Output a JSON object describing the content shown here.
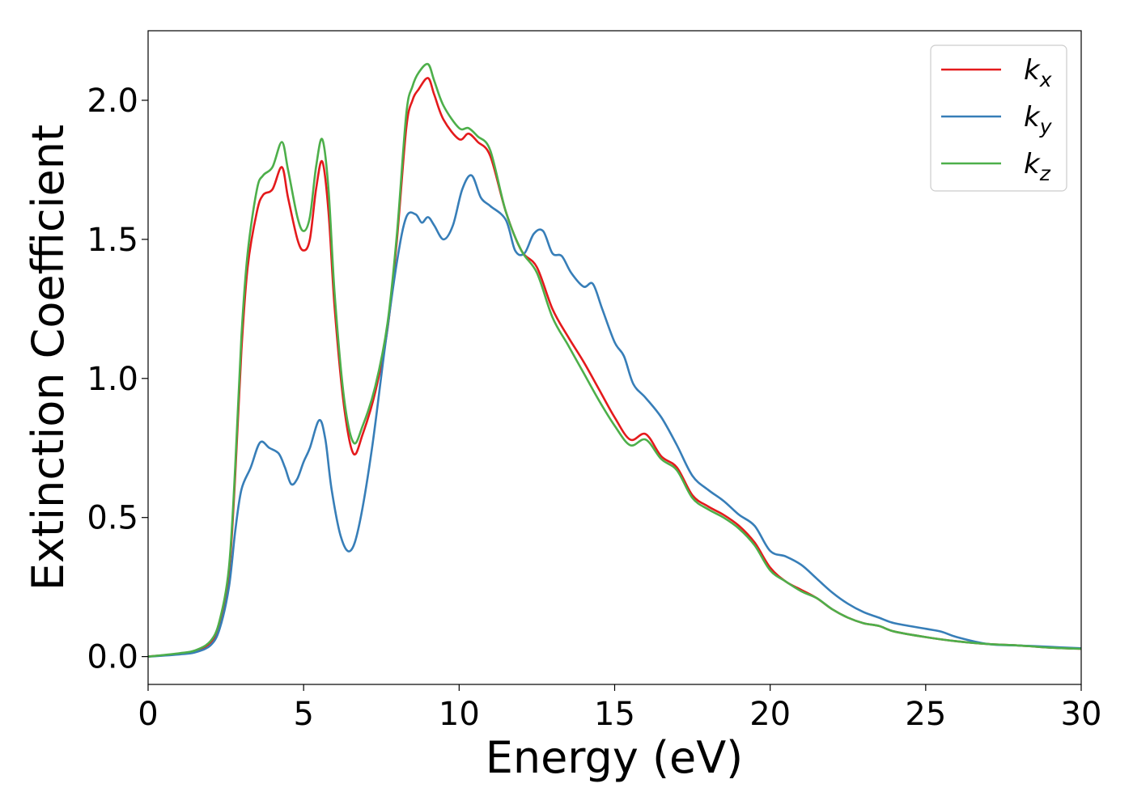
{
  "chart_data": {
    "type": "line",
    "xlabel": "Energy (eV)",
    "ylabel": "Extinction Coefficient",
    "xlim": [
      0,
      30
    ],
    "ylim": [
      -0.1,
      2.25
    ],
    "xticks": [
      0,
      5,
      10,
      15,
      20,
      25,
      30
    ],
    "xtick_labels": [
      "0",
      "5",
      "10",
      "15",
      "20",
      "25",
      "30"
    ],
    "yticks": [
      0.0,
      0.5,
      1.0,
      1.5,
      2.0
    ],
    "ytick_labels": [
      "0.0",
      "0.5",
      "1.0",
      "1.5",
      "2.0"
    ],
    "grid": false,
    "legend_position": "top-right",
    "series": [
      {
        "name": "k_x",
        "legend_main": "k",
        "legend_sub": "x",
        "color": "#e41a1c",
        "points": [
          [
            0,
            0
          ],
          [
            1,
            0.01
          ],
          [
            1.5,
            0.02
          ],
          [
            2,
            0.05
          ],
          [
            2.3,
            0.12
          ],
          [
            2.6,
            0.3
          ],
          [
            2.8,
            0.65
          ],
          [
            3.0,
            1.1
          ],
          [
            3.2,
            1.4
          ],
          [
            3.5,
            1.6
          ],
          [
            3.7,
            1.66
          ],
          [
            4.0,
            1.68
          ],
          [
            4.3,
            1.76
          ],
          [
            4.5,
            1.65
          ],
          [
            4.8,
            1.5
          ],
          [
            5.0,
            1.46
          ],
          [
            5.2,
            1.5
          ],
          [
            5.4,
            1.68
          ],
          [
            5.6,
            1.78
          ],
          [
            5.8,
            1.6
          ],
          [
            6.0,
            1.25
          ],
          [
            6.3,
            0.9
          ],
          [
            6.6,
            0.73
          ],
          [
            6.9,
            0.8
          ],
          [
            7.3,
            0.95
          ],
          [
            7.7,
            1.18
          ],
          [
            8.0,
            1.5
          ],
          [
            8.3,
            1.9
          ],
          [
            8.5,
            2.0
          ],
          [
            8.7,
            2.04
          ],
          [
            9.0,
            2.08
          ],
          [
            9.2,
            2.02
          ],
          [
            9.5,
            1.93
          ],
          [
            10.0,
            1.86
          ],
          [
            10.3,
            1.88
          ],
          [
            10.6,
            1.85
          ],
          [
            11.0,
            1.8
          ],
          [
            11.5,
            1.6
          ],
          [
            12.0,
            1.46
          ],
          [
            12.5,
            1.4
          ],
          [
            13.0,
            1.25
          ],
          [
            13.5,
            1.15
          ],
          [
            14.0,
            1.06
          ],
          [
            14.5,
            0.96
          ],
          [
            15.0,
            0.86
          ],
          [
            15.5,
            0.78
          ],
          [
            16.0,
            0.8
          ],
          [
            16.5,
            0.72
          ],
          [
            17.0,
            0.68
          ],
          [
            17.5,
            0.58
          ],
          [
            18.0,
            0.54
          ],
          [
            18.5,
            0.51
          ],
          [
            19.0,
            0.47
          ],
          [
            19.5,
            0.41
          ],
          [
            20.0,
            0.32
          ],
          [
            20.5,
            0.27
          ],
          [
            21.0,
            0.24
          ],
          [
            21.5,
            0.21
          ],
          [
            22.0,
            0.17
          ],
          [
            22.5,
            0.14
          ],
          [
            23.0,
            0.12
          ],
          [
            23.5,
            0.11
          ],
          [
            24.0,
            0.09
          ],
          [
            25.0,
            0.07
          ],
          [
            26.0,
            0.055
          ],
          [
            27.0,
            0.045
          ],
          [
            28.0,
            0.04
          ],
          [
            29.0,
            0.032
          ],
          [
            30.0,
            0.028
          ]
        ]
      },
      {
        "name": "k_y",
        "legend_main": "k",
        "legend_sub": "y",
        "color": "#377eb8",
        "points": [
          [
            0,
            0
          ],
          [
            1,
            0.008
          ],
          [
            1.5,
            0.015
          ],
          [
            2,
            0.04
          ],
          [
            2.3,
            0.1
          ],
          [
            2.6,
            0.25
          ],
          [
            2.8,
            0.45
          ],
          [
            3.0,
            0.6
          ],
          [
            3.3,
            0.68
          ],
          [
            3.6,
            0.77
          ],
          [
            3.9,
            0.75
          ],
          [
            4.2,
            0.73
          ],
          [
            4.4,
            0.68
          ],
          [
            4.6,
            0.62
          ],
          [
            4.8,
            0.64
          ],
          [
            5.0,
            0.7
          ],
          [
            5.2,
            0.75
          ],
          [
            5.5,
            0.85
          ],
          [
            5.7,
            0.78
          ],
          [
            5.9,
            0.6
          ],
          [
            6.2,
            0.43
          ],
          [
            6.5,
            0.38
          ],
          [
            6.8,
            0.48
          ],
          [
            7.2,
            0.75
          ],
          [
            7.6,
            1.1
          ],
          [
            8.0,
            1.42
          ],
          [
            8.3,
            1.58
          ],
          [
            8.6,
            1.59
          ],
          [
            8.8,
            1.56
          ],
          [
            9.0,
            1.58
          ],
          [
            9.2,
            1.55
          ],
          [
            9.5,
            1.5
          ],
          [
            9.8,
            1.55
          ],
          [
            10.1,
            1.68
          ],
          [
            10.4,
            1.73
          ],
          [
            10.7,
            1.65
          ],
          [
            11.0,
            1.62
          ],
          [
            11.5,
            1.57
          ],
          [
            11.8,
            1.46
          ],
          [
            12.1,
            1.45
          ],
          [
            12.4,
            1.52
          ],
          [
            12.7,
            1.53
          ],
          [
            13.0,
            1.45
          ],
          [
            13.3,
            1.44
          ],
          [
            13.6,
            1.38
          ],
          [
            14.0,
            1.33
          ],
          [
            14.3,
            1.34
          ],
          [
            14.6,
            1.25
          ],
          [
            15.0,
            1.13
          ],
          [
            15.3,
            1.08
          ],
          [
            15.6,
            0.98
          ],
          [
            16.0,
            0.93
          ],
          [
            16.5,
            0.86
          ],
          [
            17.0,
            0.76
          ],
          [
            17.5,
            0.65
          ],
          [
            18.0,
            0.6
          ],
          [
            18.5,
            0.56
          ],
          [
            19.0,
            0.51
          ],
          [
            19.5,
            0.47
          ],
          [
            20.0,
            0.38
          ],
          [
            20.5,
            0.36
          ],
          [
            21.0,
            0.33
          ],
          [
            21.5,
            0.28
          ],
          [
            22.0,
            0.23
          ],
          [
            22.5,
            0.19
          ],
          [
            23.0,
            0.16
          ],
          [
            23.5,
            0.14
          ],
          [
            24.0,
            0.12
          ],
          [
            25.0,
            0.1
          ],
          [
            25.5,
            0.09
          ],
          [
            26.0,
            0.07
          ],
          [
            27.0,
            0.045
          ],
          [
            28.0,
            0.04
          ],
          [
            29.0,
            0.035
          ],
          [
            30.0,
            0.03
          ]
        ]
      },
      {
        "name": "k_z",
        "legend_main": "k",
        "legend_sub": "z",
        "color": "#4daf4a",
        "points": [
          [
            0,
            0
          ],
          [
            1,
            0.012
          ],
          [
            1.5,
            0.022
          ],
          [
            2,
            0.055
          ],
          [
            2.3,
            0.13
          ],
          [
            2.6,
            0.32
          ],
          [
            2.8,
            0.68
          ],
          [
            3.0,
            1.15
          ],
          [
            3.2,
            1.45
          ],
          [
            3.5,
            1.68
          ],
          [
            3.7,
            1.73
          ],
          [
            4.0,
            1.76
          ],
          [
            4.3,
            1.85
          ],
          [
            4.5,
            1.75
          ],
          [
            4.8,
            1.58
          ],
          [
            5.0,
            1.53
          ],
          [
            5.2,
            1.58
          ],
          [
            5.4,
            1.76
          ],
          [
            5.6,
            1.86
          ],
          [
            5.8,
            1.68
          ],
          [
            6.0,
            1.3
          ],
          [
            6.3,
            0.93
          ],
          [
            6.6,
            0.77
          ],
          [
            6.9,
            0.83
          ],
          [
            7.3,
            0.97
          ],
          [
            7.7,
            1.2
          ],
          [
            8.0,
            1.52
          ],
          [
            8.3,
            1.95
          ],
          [
            8.5,
            2.05
          ],
          [
            8.7,
            2.1
          ],
          [
            9.0,
            2.13
          ],
          [
            9.2,
            2.07
          ],
          [
            9.5,
            1.98
          ],
          [
            10.0,
            1.9
          ],
          [
            10.3,
            1.9
          ],
          [
            10.6,
            1.87
          ],
          [
            11.0,
            1.82
          ],
          [
            11.5,
            1.6
          ],
          [
            12.0,
            1.46
          ],
          [
            12.5,
            1.38
          ],
          [
            13.0,
            1.22
          ],
          [
            13.5,
            1.12
          ],
          [
            14.0,
            1.02
          ],
          [
            14.5,
            0.92
          ],
          [
            15.0,
            0.83
          ],
          [
            15.5,
            0.76
          ],
          [
            16.0,
            0.78
          ],
          [
            16.5,
            0.71
          ],
          [
            17.0,
            0.67
          ],
          [
            17.5,
            0.57
          ],
          [
            18.0,
            0.53
          ],
          [
            18.5,
            0.5
          ],
          [
            19.0,
            0.46
          ],
          [
            19.5,
            0.4
          ],
          [
            20.0,
            0.31
          ],
          [
            20.5,
            0.27
          ],
          [
            21.0,
            0.235
          ],
          [
            21.5,
            0.21
          ],
          [
            22.0,
            0.17
          ],
          [
            22.5,
            0.14
          ],
          [
            23.0,
            0.12
          ],
          [
            23.5,
            0.11
          ],
          [
            24.0,
            0.09
          ],
          [
            25.0,
            0.07
          ],
          [
            26.0,
            0.055
          ],
          [
            27.0,
            0.045
          ],
          [
            28.0,
            0.04
          ],
          [
            29.0,
            0.032
          ],
          [
            30.0,
            0.028
          ]
        ]
      }
    ]
  }
}
